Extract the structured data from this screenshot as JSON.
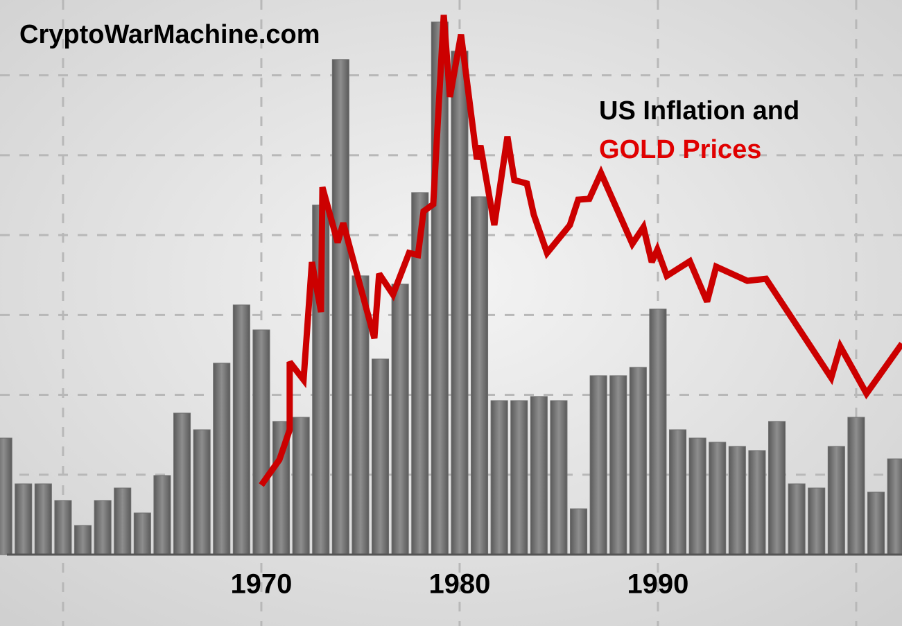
{
  "chart_data": {
    "type": "bar",
    "watermark": "CryptoWarMachine.com",
    "title": [
      "US Inflation and",
      "GOLD Prices"
    ],
    "title_colors": [
      "#000000",
      "#e00000"
    ],
    "xlim": [
      1956.82,
      2002.31
    ],
    "xticks": [
      1970,
      1980,
      1990
    ],
    "xgrid": [
      1960,
      1970,
      1980,
      1990,
      2000
    ],
    "ylim": [
      0,
      13.33
    ],
    "ygrid": [
      1.92,
      3.84,
      5.76,
      7.68,
      9.6,
      11.52
    ],
    "y2lim": [
      0,
      13.33
    ],
    "grid": true,
    "series": [
      {
        "type": "bar",
        "color": "#6e6e6e",
        "x": [
          1957,
          1958,
          1959,
          1960,
          1961,
          1962,
          1963,
          1964,
          1965,
          1966,
          1967,
          1968,
          1969,
          1970,
          1971,
          1972,
          1973,
          1974,
          1975,
          1976,
          1977,
          1978,
          1979,
          1980,
          1981,
          1982,
          1983,
          1984,
          1985,
          1986,
          1987,
          1988,
          1989,
          1990,
          1991,
          1992,
          1993,
          1994,
          1995,
          1996,
          1997,
          1998,
          1999,
          2000,
          2001,
          2002
        ],
        "values": [
          2.8,
          1.7,
          1.7,
          1.3,
          0.7,
          1.3,
          1.6,
          1.0,
          1.9,
          3.4,
          3.0,
          4.6,
          6.0,
          5.4,
          3.2,
          3.3,
          8.4,
          11.9,
          6.7,
          4.7,
          6.5,
          8.7,
          12.8,
          12.1,
          8.6,
          3.7,
          3.7,
          3.8,
          3.7,
          1.1,
          4.3,
          4.3,
          4.5,
          5.9,
          3.0,
          2.8,
          2.7,
          2.6,
          2.5,
          3.2,
          1.7,
          1.6,
          2.6,
          3.3,
          1.5,
          2.3
        ]
      },
      {
        "type": "line",
        "color": "#cc0000",
        "axis": "y2",
        "x": [
          1970.0,
          1970.91,
          1971.43,
          1971.43,
          1972.13,
          1972.55,
          1973.01,
          1973.08,
          1973.85,
          1974.13,
          1975.7,
          1975.94,
          1976.64,
          1977.45,
          1977.9,
          1978.18,
          1978.67,
          1979.2,
          1979.51,
          1980.07,
          1980.87,
          1981.05,
          1981.75,
          1982.41,
          1982.76,
          1983.39,
          1983.74,
          1984.41,
          1985.56,
          1985.98,
          1986.54,
          1987.13,
          1988.71,
          1989.27,
          1989.69,
          1989.97,
          1990.45,
          1991.61,
          1992.48,
          1992.94,
          1994.51,
          1995.45,
          1998.74,
          1999.2,
          2000.52,
          2002.31
        ],
        "values": [
          1.67,
          2.28,
          3.0,
          4.63,
          4.2,
          7.03,
          5.83,
          8.83,
          7.5,
          7.97,
          5.2,
          6.75,
          6.25,
          7.25,
          7.2,
          8.25,
          8.42,
          12.97,
          11.0,
          12.5,
          9.5,
          9.83,
          7.92,
          10.05,
          9.0,
          8.92,
          8.17,
          7.25,
          7.92,
          8.53,
          8.55,
          9.17,
          7.47,
          7.87,
          7.03,
          7.33,
          6.7,
          7.05,
          6.08,
          6.92,
          6.58,
          6.63,
          4.25,
          5.0,
          3.87,
          5.07
        ]
      }
    ]
  }
}
